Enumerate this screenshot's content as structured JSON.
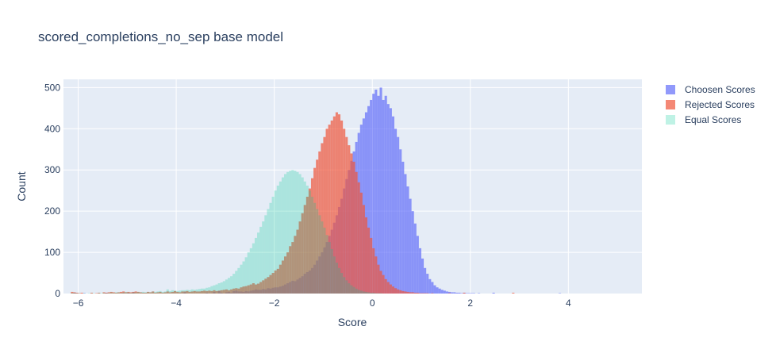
{
  "chart_data": {
    "type": "bar",
    "subtype": "overlaid-histogram",
    "title": "scored_completions_no_sep base model",
    "xlabel": "Score",
    "ylabel": "Count",
    "xlim": [
      -6.3,
      5.5
    ],
    "ylim": [
      0,
      520
    ],
    "x_ticks": [
      -6,
      -4,
      -2,
      0,
      2,
      4
    ],
    "x_tick_labels": [
      "−6",
      "−4",
      "−2",
      "0",
      "2",
      "4"
    ],
    "y_ticks": [
      0,
      100,
      200,
      300,
      400,
      500
    ],
    "y_tick_labels": [
      "0",
      "100",
      "200",
      "300",
      "400",
      "500"
    ],
    "grid": true,
    "legend_position": "right",
    "bin_width": 0.05,
    "bins_start": -6.3,
    "series": [
      {
        "name": "Choosen Scores",
        "color": "#636efa",
        "opacity": 0.7,
        "values": [
          0,
          0,
          0,
          0,
          2,
          1,
          0,
          0,
          1,
          0,
          0,
          0,
          0,
          0,
          0,
          0,
          0,
          2,
          0,
          0,
          0,
          0,
          0,
          0,
          1,
          0,
          2,
          0,
          3,
          0,
          0,
          0,
          0,
          0,
          0,
          0,
          0,
          0,
          0,
          0,
          0,
          0,
          0,
          0,
          0,
          0,
          0,
          0,
          0,
          3,
          0,
          0,
          0,
          0,
          0,
          0,
          0,
          0,
          2,
          0,
          0,
          4,
          0,
          6,
          2,
          0,
          3,
          4,
          2,
          6,
          7,
          5,
          5,
          4,
          6,
          5,
          7,
          8,
          10,
          9,
          9,
          11,
          10,
          13,
          12,
          14,
          15,
          15,
          17,
          19,
          22,
          25,
          28,
          31,
          30,
          34,
          38,
          42,
          48,
          52,
          56,
          62,
          70,
          80,
          90,
          100,
          112,
          125,
          140,
          155,
          172,
          190,
          210,
          230,
          255,
          278,
          300,
          322,
          345,
          368,
          390,
          410,
          425,
          440,
          455,
          470,
          485,
          495,
          480,
          500,
          470,
          480,
          460,
          450,
          430,
          400,
          380,
          350,
          320,
          290,
          260,
          230,
          200,
          170,
          140,
          110,
          85,
          62,
          48,
          35,
          28,
          20,
          15,
          12,
          9,
          7,
          5,
          4,
          3,
          3,
          2,
          2,
          1,
          2,
          1,
          1,
          1,
          1,
          0,
          1,
          0,
          0,
          0,
          0,
          0,
          2,
          0,
          0,
          0,
          0,
          0,
          0,
          0,
          0,
          0,
          0,
          0,
          0,
          0,
          0,
          0,
          0,
          0,
          0,
          0,
          0,
          0,
          0,
          0,
          0,
          0,
          0,
          1,
          0,
          0,
          0,
          0,
          0,
          0,
          0,
          0,
          0,
          0,
          0,
          0,
          0,
          0,
          0,
          0,
          0,
          0,
          0,
          0,
          0,
          0,
          0,
          0,
          0,
          0,
          0,
          0,
          0,
          0,
          0,
          0,
          0,
          0,
          0,
          0,
          0,
          0
        ]
      },
      {
        "name": "Rejected Scores",
        "color": "#ef553b",
        "opacity": 0.7,
        "values": [
          0,
          0,
          0,
          4,
          3,
          2,
          1,
          2,
          0,
          0,
          0,
          2,
          0,
          1,
          2,
          0,
          3,
          2,
          3,
          4,
          3,
          2,
          3,
          4,
          5,
          3,
          4,
          3,
          4,
          5,
          4,
          3,
          2,
          2,
          4,
          3,
          5,
          2,
          3,
          4,
          2,
          3,
          5,
          3,
          4,
          6,
          4,
          3,
          5,
          5,
          6,
          4,
          5,
          6,
          5,
          5,
          6,
          7,
          6,
          7,
          6,
          8,
          6,
          7,
          8,
          9,
          10,
          8,
          10,
          12,
          13,
          12,
          15,
          17,
          18,
          20,
          22,
          25,
          22,
          24,
          28,
          32,
          36,
          40,
          45,
          50,
          56,
          60,
          70,
          80,
          90,
          100,
          115,
          125,
          140,
          155,
          175,
          195,
          215,
          235,
          255,
          280,
          305,
          325,
          345,
          365,
          380,
          400,
          410,
          420,
          430,
          440,
          435,
          420,
          400,
          380,
          360,
          340,
          320,
          295,
          270,
          245,
          215,
          185,
          160,
          135,
          110,
          90,
          70,
          55,
          45,
          35,
          28,
          22,
          17,
          13,
          10,
          8,
          6,
          5,
          4,
          3,
          3,
          2,
          2,
          1,
          1,
          1,
          1,
          0,
          1,
          0,
          0,
          0,
          0,
          0,
          0,
          1,
          0,
          0,
          0,
          0,
          0,
          2,
          0,
          0,
          0,
          0,
          0,
          0,
          0,
          0,
          0,
          0,
          0,
          0,
          0,
          0,
          0,
          0,
          0,
          0,
          0,
          2,
          0,
          0,
          0,
          0,
          0,
          0,
          0,
          0,
          0,
          0,
          0,
          0,
          0,
          0,
          0,
          0,
          0,
          0,
          0,
          0,
          0,
          0,
          0,
          0,
          0,
          0,
          0,
          0,
          0,
          0,
          0,
          0,
          0,
          0,
          0,
          0,
          0,
          0,
          0,
          0,
          0,
          0,
          0,
          0,
          0,
          0,
          0,
          0,
          0,
          0,
          0,
          0,
          0
        ]
      },
      {
        "name": "Equal Scores",
        "color": "#00cc96",
        "opacity": 0.25,
        "values": [
          0,
          0,
          0,
          2,
          2,
          1,
          1,
          0,
          1,
          0,
          1,
          1,
          1,
          0,
          2,
          1,
          2,
          1,
          2,
          3,
          2,
          3,
          3,
          2,
          3,
          4,
          3,
          2,
          3,
          3,
          4,
          3,
          4,
          3,
          4,
          3,
          5,
          4,
          5,
          6,
          4,
          5,
          10,
          6,
          8,
          7,
          6,
          7,
          8,
          8,
          9,
          8,
          10,
          9,
          10,
          11,
          12,
          12,
          14,
          15,
          18,
          20,
          22,
          25,
          27,
          30,
          34,
          38,
          42,
          48,
          55,
          62,
          70,
          78,
          88,
          100,
          110,
          122,
          135,
          148,
          162,
          175,
          190,
          205,
          220,
          235,
          250,
          262,
          272,
          282,
          290,
          295,
          298,
          300,
          298,
          295,
          290,
          282,
          272,
          262,
          250,
          235,
          220,
          205,
          190,
          175,
          160,
          142,
          125,
          108,
          90,
          75,
          62,
          50,
          40,
          32,
          25,
          20,
          16,
          12,
          9,
          7,
          5,
          4,
          3,
          2,
          2,
          1,
          1,
          1,
          0,
          0,
          0,
          0,
          0,
          0,
          0,
          0,
          0,
          0,
          0,
          0,
          0,
          0,
          0,
          0,
          0,
          0,
          0,
          0,
          0,
          0,
          0,
          0,
          0,
          0,
          0,
          0,
          0,
          0,
          0,
          0,
          0,
          0,
          0,
          0,
          0,
          0,
          0,
          0,
          0,
          0,
          0,
          0,
          0,
          0,
          0,
          0,
          0,
          0,
          0,
          0,
          0,
          0,
          0,
          0,
          0,
          0,
          0,
          0,
          0,
          0,
          0,
          0,
          0,
          0,
          0,
          0,
          0,
          0,
          0,
          0,
          0,
          0,
          0,
          0,
          0,
          0,
          0,
          0,
          0,
          0,
          0,
          0,
          0,
          0,
          0,
          0,
          0,
          0,
          0,
          0,
          0,
          0,
          0,
          0,
          0,
          0,
          0,
          0,
          0,
          0,
          0,
          0,
          0,
          0,
          0,
          0
        ]
      }
    ]
  }
}
